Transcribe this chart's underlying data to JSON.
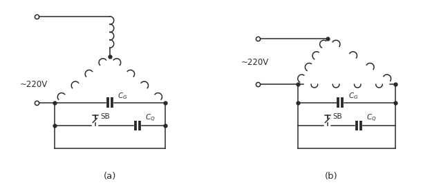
{
  "fig_width": 6.38,
  "fig_height": 2.71,
  "dpi": 100,
  "bg_color": "#ffffff",
  "line_color": "#2a2a2a",
  "lw": 1.1,
  "label_a": "(a)",
  "label_b": "(b)",
  "voltage_label": "~220V"
}
